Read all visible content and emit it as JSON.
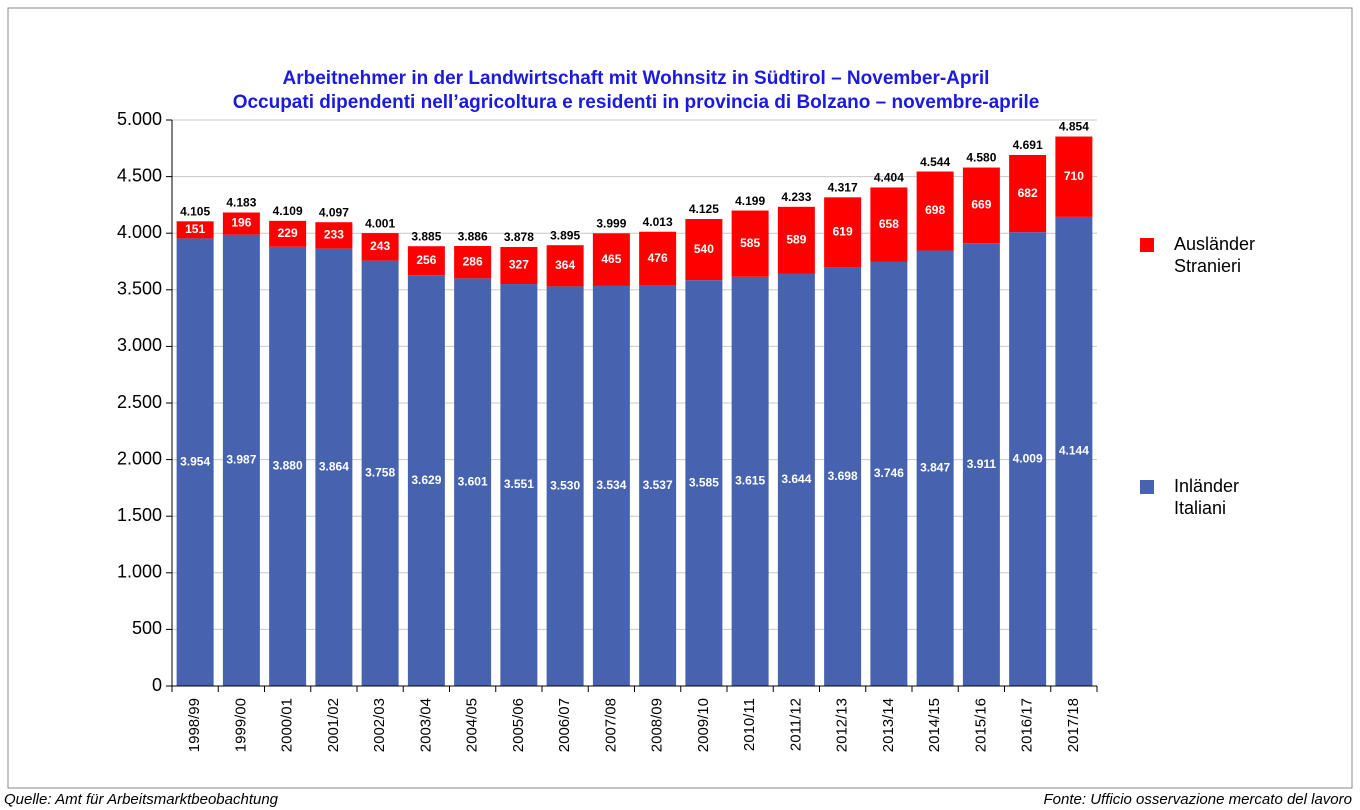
{
  "chart_data": {
    "type": "stacked_bar",
    "title": [
      "Arbeitnehmer in der Landwirtschaft mit Wohnsitz in Südtirol – November-April",
      "Occupati dipendenti nell’agricoltura e residenti in provincia di Bolzano – novembre-aprile"
    ],
    "categories": [
      "1998/99",
      "1999/00",
      "2000/01",
      "2001/02",
      "2002/03",
      "2003/04",
      "2004/05",
      "2005/06",
      "2006/07",
      "2007/08",
      "2008/09",
      "2009/10",
      "2010/11",
      "2011/12",
      "2012/13",
      "2013/14",
      "2014/15",
      "2015/16",
      "2016/17",
      "2017/18"
    ],
    "series": [
      {
        "name": [
          "Inländer",
          "Italiani"
        ],
        "color": "#4763b0",
        "values": [
          3954,
          3987,
          3880,
          3864,
          3758,
          3629,
          3601,
          3551,
          3530,
          3534,
          3537,
          3585,
          3615,
          3644,
          3698,
          3746,
          3847,
          3911,
          4009,
          4144
        ],
        "value_labels": [
          "3.954",
          "3.987",
          "3.880",
          "3.864",
          "3.758",
          "3.629",
          "3.601",
          "3.551",
          "3.530",
          "3.534",
          "3.537",
          "3.585",
          "3.615",
          "3.644",
          "3.698",
          "3.746",
          "3.847",
          "3.911",
          "4.009",
          "4.144"
        ]
      },
      {
        "name": [
          "Ausländer",
          "Stranieri"
        ],
        "color": "#ff0000",
        "values": [
          151,
          196,
          229,
          233,
          243,
          256,
          286,
          327,
          364,
          465,
          476,
          540,
          585,
          589,
          619,
          658,
          698,
          669,
          682,
          710
        ]
      }
    ],
    "totals": {
      "values": [
        4105,
        4183,
        4109,
        4097,
        4001,
        3885,
        3886,
        3878,
        3895,
        3999,
        4013,
        4125,
        4199,
        4233,
        4317,
        4404,
        4544,
        4580,
        4691,
        4854
      ],
      "value_labels": [
        "4.105",
        "4.183",
        "4.109",
        "4.097",
        "4.001",
        "3.885",
        "3.886",
        "3.878",
        "3.895",
        "3.999",
        "4.013",
        "4.125",
        "4.199",
        "4.233",
        "4.317",
        "4.404",
        "4.544",
        "4.580",
        "4.691",
        "4.854"
      ]
    },
    "ylim": [
      0,
      5000
    ],
    "yticks": [
      0,
      500,
      {
        "value": 1000,
        "label": "1.000"
      },
      {
        "value": 1500,
        "label": "1.500"
      },
      {
        "value": 2000,
        "label": "2.000"
      },
      {
        "value": 2500,
        "label": "2.500"
      },
      {
        "value": 3000,
        "label": "3.000"
      },
      {
        "value": 3500,
        "label": "3.500"
      },
      {
        "value": 4000,
        "label": "4.000"
      },
      {
        "value": 4500,
        "label": "4.500"
      },
      {
        "value": 5000,
        "label": "5.000"
      }
    ],
    "grid": true,
    "source_left": "Quelle: Amt für Arbeitsmarktbeobachtung",
    "source_right": "Fonte: Ufficio osservazione mercato del lavoro"
  }
}
